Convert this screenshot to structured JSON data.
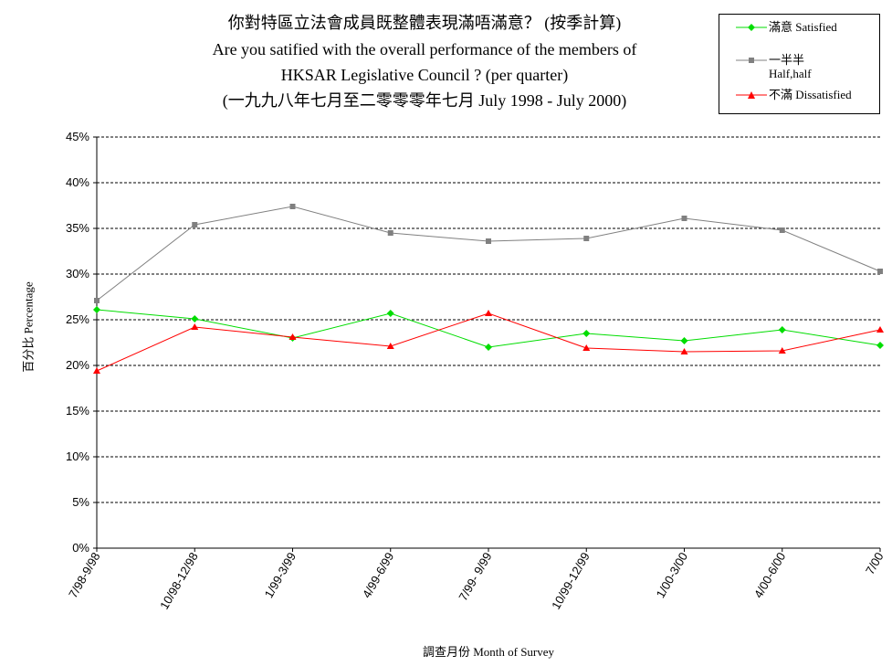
{
  "chart_data": {
    "type": "line",
    "title": [
      "你對特區立法會成員既整體表現滿唔滿意？ (按季計算)",
      "Are you satified with the overall performance of the members of",
      "HKSAR Legislative Council ? (per quarter)",
      "(一九九八年七月至二零零零年七月 July 1998 - July 2000)"
    ],
    "xlabel": "調查月份 Month of Survey",
    "ylabel": "百分比 Percentage",
    "ylim": [
      0,
      45
    ],
    "yticks": [
      "0%",
      "5%",
      "10%",
      "15%",
      "20%",
      "25%",
      "30%",
      "35%",
      "40%",
      "45%"
    ],
    "ytick_values": [
      0,
      5,
      10,
      15,
      20,
      25,
      30,
      35,
      40,
      45
    ],
    "grid": "horizontal-dashed",
    "legend_position": "top-right",
    "categories": [
      "7/98-9/98",
      "10/98-12/98",
      "1/99-3/99",
      "4/99-6/99",
      "7/99- 9/99",
      "10/99-12/99",
      "1/00-3/00",
      "4/00-6/00",
      "7/00"
    ],
    "series": [
      {
        "name": "滿意 Satisfied",
        "color": "#00dd00",
        "marker": "diamond",
        "values": [
          26.1,
          25.1,
          23.0,
          25.7,
          22.0,
          23.5,
          22.7,
          23.9,
          22.2
        ]
      },
      {
        "name": "一半半\nHalf,half",
        "color": "#808080",
        "marker": "square",
        "values": [
          27.1,
          35.4,
          37.4,
          34.5,
          33.6,
          33.9,
          36.1,
          34.8,
          30.3
        ]
      },
      {
        "name": "不滿 Dissatisfied",
        "color": "#ff0000",
        "marker": "triangle",
        "values": [
          19.4,
          24.2,
          23.1,
          22.1,
          25.7,
          21.9,
          21.5,
          21.6,
          23.9
        ]
      }
    ]
  }
}
